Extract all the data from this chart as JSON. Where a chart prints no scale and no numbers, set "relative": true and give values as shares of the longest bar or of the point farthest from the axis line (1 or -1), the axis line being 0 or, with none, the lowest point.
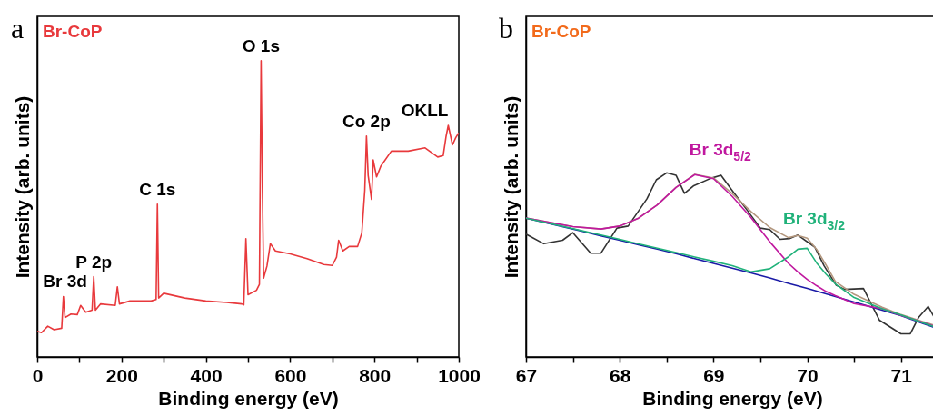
{
  "chart_data": [
    {
      "type": "line",
      "title": "a",
      "xlabel": "Binding energy (eV)",
      "ylabel": "Intensity (arb. units)",
      "relative": true,
      "xlim": [
        0,
        1000
      ],
      "xticks": [
        0,
        {
          "value": 100,
          "label": null
        },
        200,
        {
          "value": 300,
          "label": null
        },
        400,
        {
          "value": 500,
          "label": null
        },
        600,
        {
          "value": 700,
          "label": null
        },
        800,
        {
          "value": 900,
          "label": null
        },
        1000
      ],
      "annotations": [
        {
          "text": "Br 3d",
          "x": 66,
          "y": 0.204
        },
        {
          "text": "P 2p",
          "x": 134,
          "y": 0.271
        },
        {
          "text": "C 1s",
          "x": 285,
          "y": 0.516
        },
        {
          "text": "O 1s",
          "x": 531,
          "y": 1.0
        },
        {
          "text": "Co 2p",
          "x": 781,
          "y": 0.746
        },
        {
          "text": "OKLL",
          "x": 975,
          "y": 0.782
        }
      ],
      "series": [
        {
          "name": "Br-CoP",
          "color": "#e8393c",
          "x": [
            0,
            10,
            25,
            40,
            58,
            62,
            66,
            80,
            95,
            103,
            115,
            130,
            134,
            138,
            150,
            185,
            190,
            195,
            220,
            270,
            282,
            285,
            288,
            300,
            350,
            400,
            450,
            485,
            490,
            495,
            500,
            520,
            527,
            531,
            534,
            537,
            545,
            553,
            565,
            600,
            640,
            680,
            700,
            710,
            715,
            725,
            740,
            760,
            770,
            777,
            781,
            785,
            793,
            797,
            805,
            815,
            840,
            880,
            920,
            950,
            963,
            970,
            975,
            985,
            993,
            1000
          ],
          "values": [
            0.087,
            0.082,
            0.104,
            0.092,
            0.097,
            0.204,
            0.133,
            0.145,
            0.143,
            0.174,
            0.151,
            0.158,
            0.271,
            0.158,
            0.179,
            0.174,
            0.237,
            0.179,
            0.189,
            0.189,
            0.194,
            0.516,
            0.199,
            0.215,
            0.199,
            0.189,
            0.184,
            0.179,
            0.176,
            0.399,
            0.21,
            0.225,
            0.245,
            1.0,
            0.583,
            0.266,
            0.307,
            0.383,
            0.358,
            0.348,
            0.332,
            0.312,
            0.309,
            0.337,
            0.394,
            0.358,
            0.373,
            0.373,
            0.419,
            0.562,
            0.746,
            0.613,
            0.532,
            0.665,
            0.608,
            0.644,
            0.695,
            0.695,
            0.706,
            0.675,
            0.68,
            0.746,
            0.782,
            0.716,
            0.741,
            0.757
          ]
        }
      ]
    },
    {
      "type": "line",
      "title": "b",
      "xlabel": "Binding energy (eV)",
      "ylabel": "Intensity (arb. units)",
      "relative": true,
      "xlim": [
        67,
        71.4
      ],
      "xticks": [
        67,
        {
          "value": 67.5,
          "label": null
        },
        68,
        {
          "value": 68.5,
          "label": null
        },
        69,
        {
          "value": 69.5,
          "label": null
        },
        70,
        {
          "value": 70.5,
          "label": null
        },
        71
      ],
      "annotations": [
        "Br-CoP"
      ],
      "x": [
        67,
        67.5,
        67.8,
        68,
        68.2,
        68.4,
        68.6,
        68.8,
        69,
        69.2,
        69.4,
        69.6,
        69.8,
        69.9,
        70,
        70.1,
        70.2,
        70.3,
        70.5,
        70.8,
        71,
        71.39
      ],
      "series": [
        {
          "color": "#333333",
          "x": [
            67.0,
            67.19,
            67.39,
            67.5,
            67.69,
            67.8,
            67.97,
            68.09,
            68.29,
            68.39,
            68.5,
            68.6,
            68.69,
            68.79,
            68.97,
            69.08,
            69.21,
            69.37,
            69.5,
            69.6,
            69.71,
            69.81,
            69.9,
            70.08,
            70.18,
            70.31,
            70.4,
            70.6,
            70.77,
            71.0,
            71.1,
            71.19,
            71.29,
            71.39
          ],
          "values": [
            0.667,
            0.615,
            0.634,
            0.675,
            0.564,
            0.564,
            0.7,
            0.711,
            0.859,
            0.962,
            1.0,
            0.987,
            0.889,
            0.93,
            0.97,
            0.987,
            0.897,
            0.79,
            0.7,
            0.692,
            0.639,
            0.643,
            0.662,
            0.597,
            0.495,
            0.389,
            0.367,
            0.372,
            0.2,
            0.126,
            0.126,
            0.216,
            0.274,
            0.184
          ]
        },
        {
          "color": "#b3977e",
          "values": [
            0.754,
            0.708,
            0.695,
            0.711,
            0.754,
            0.826,
            0.921,
            0.992,
            0.972,
            0.887,
            0.79,
            0.703,
            0.648,
            0.66,
            0.645,
            0.585,
            0.5,
            0.41,
            0.34,
            0.27,
            0.23,
            0.166
          ]
        },
        {
          "color": "#1a1aa6",
          "values": [
            0.754,
            0.695,
            0.658,
            0.634,
            0.609,
            0.586,
            0.561,
            0.534,
            0.508,
            0.482,
            0.456,
            0.429,
            0.4,
            0.386,
            0.372,
            0.358,
            0.343,
            0.328,
            0.298,
            0.254,
            0.225,
            0.154
          ]
        },
        {
          "name": "Br 3d$_{5/2}$",
          "color": "#c0189f",
          "values": [
            0.754,
            0.708,
            0.695,
            0.711,
            0.754,
            0.826,
            0.921,
            0.99,
            0.968,
            0.872,
            0.757,
            0.626,
            0.508,
            0.462,
            0.421,
            0.387,
            0.356,
            0.333,
            0.29,
            0.262,
            0.226,
            0.162
          ]
        },
        {
          "name": "Br 3d$_{3/2}$",
          "color": "#20b27a",
          "values": [
            0.754,
            0.697,
            0.662,
            0.639,
            0.614,
            0.591,
            0.567,
            0.543,
            0.52,
            0.496,
            0.462,
            0.479,
            0.544,
            0.585,
            0.59,
            0.511,
            0.45,
            0.397,
            0.323,
            0.262,
            0.228,
            0.158
          ]
        }
      ]
    }
  ]
}
